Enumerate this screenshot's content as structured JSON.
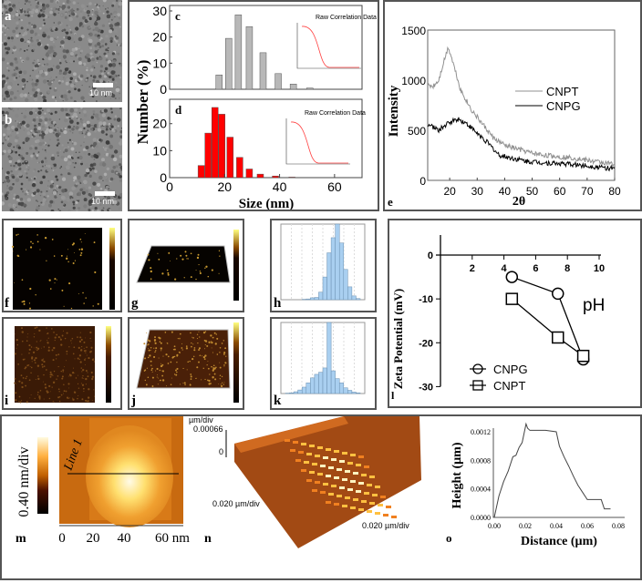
{
  "panels": {
    "a": {
      "label": "a",
      "scale_bar": "10 nm"
    },
    "b": {
      "label": "b",
      "scale_bar": "10 nm"
    },
    "f": {
      "label": "f"
    },
    "g": {
      "label": "g"
    },
    "h": {
      "label": "h"
    },
    "i": {
      "label": "i"
    },
    "j": {
      "label": "j"
    },
    "k": {
      "label": "k"
    },
    "m": {
      "label": "m",
      "colorbar_label": "0.40 nm/div",
      "line_label": "Line 1",
      "x_ticks": [
        "0",
        "20",
        "40",
        "60 nm"
      ]
    },
    "n": {
      "label": "n",
      "z_unit": "µm/div",
      "z_max": "0.00066",
      "z_zero": "0",
      "x_axis": "0.020 µm/div",
      "y_axis": "0.020 µm/div"
    }
  },
  "colors": {
    "gray_bar": "#b8b8b8",
    "red_bar": "#ff0000",
    "cnpt": "#909090",
    "cnpg": "#000000",
    "afm_blue": "#a9cff0"
  },
  "chart_data": [
    {
      "id": "c",
      "type": "bar",
      "label": "c",
      "ylabel": "Number (%)",
      "xlabel": "Size (nm)",
      "xlim": [
        0,
        70
      ],
      "ylim": [
        0,
        30
      ],
      "yticks": [
        "0",
        "10",
        "20",
        "30"
      ],
      "x": [
        18,
        21.5,
        25,
        29,
        34,
        39.5,
        45,
        51
      ],
      "values": [
        5.5,
        19.5,
        28.5,
        24,
        14,
        6,
        2,
        0.5
      ],
      "inset_title": "Raw Correlation Data"
    },
    {
      "id": "d",
      "type": "bar",
      "label": "d",
      "xlabel": "Size (nm)",
      "xlim": [
        0,
        70
      ],
      "ylim": [
        0,
        27
      ],
      "xticks": [
        "0",
        "20",
        "40",
        "60"
      ],
      "yticks": [
        "0",
        "10",
        "20"
      ],
      "x": [
        11.5,
        14,
        16.5,
        19,
        22,
        25.5,
        29,
        33,
        38.5,
        44.5
      ],
      "values": [
        4.5,
        16.5,
        26,
        23.5,
        15,
        7.5,
        3.2,
        1.3,
        0.6,
        0.2
      ],
      "inset_title": "Raw Correlation Data"
    },
    {
      "id": "e",
      "type": "line",
      "label": "e",
      "xlabel": "2θ",
      "ylabel": "Intensity",
      "xlim": [
        12,
        80
      ],
      "ylim": [
        0,
        1500
      ],
      "xticks": [
        "20",
        "30",
        "40",
        "50",
        "60",
        "70",
        "80"
      ],
      "yticks": [
        "0",
        "500",
        "1000",
        "1500"
      ],
      "legend": "center-right",
      "series": [
        {
          "name": "CNPT",
          "x": [
            12,
            14,
            16,
            18,
            19.5,
            21,
            24,
            28,
            32,
            36,
            40,
            45,
            50,
            55,
            60,
            65,
            70,
            75,
            80
          ],
          "y": [
            950,
            940,
            1000,
            1200,
            1330,
            1200,
            900,
            700,
            560,
            420,
            350,
            310,
            270,
            250,
            235,
            225,
            200,
            180,
            160
          ]
        },
        {
          "name": "CNPG",
          "x": [
            12,
            14,
            16,
            18,
            20,
            23,
            26,
            30,
            34,
            38,
            42,
            48,
            55,
            62,
            70,
            75,
            80
          ],
          "y": [
            560,
            530,
            500,
            540,
            580,
            615,
            570,
            470,
            370,
            250,
            225,
            190,
            175,
            165,
            145,
            130,
            115
          ]
        }
      ]
    },
    {
      "id": "l",
      "type": "line",
      "label": "l",
      "xlabel": "pH",
      "ylabel": "Zeta Potential (mV)",
      "xlim": [
        0,
        10
      ],
      "ylim": [
        -30,
        5
      ],
      "xticks": [
        "2",
        "4",
        "6",
        "8",
        "10"
      ],
      "yticks": [
        "0",
        "-10",
        "-20",
        "-30"
      ],
      "legend": "bottom-left",
      "series": [
        {
          "name": "CNPG",
          "marker": "circle",
          "x": [
            4.5,
            7.4,
            9.0
          ],
          "y": [
            -5,
            -8.8,
            -23.8
          ]
        },
        {
          "name": "CNPT",
          "marker": "square",
          "x": [
            4.5,
            7.4,
            9.0
          ],
          "y": [
            -10,
            -18.8,
            -23
          ]
        }
      ]
    },
    {
      "id": "o",
      "type": "line",
      "label": "o",
      "xlabel": "Distance (µm)",
      "ylabel": "Height (µm)",
      "xlim": [
        0,
        0.085
      ],
      "ylim": [
        0,
        0.0014
      ],
      "xticks": [
        "0.00",
        "0.02",
        "0.04",
        "0.06",
        "0.08"
      ],
      "yticks": [
        "0.0000",
        "0.0004",
        "0.0008",
        "0.0012"
      ],
      "series": [
        {
          "name": "profile",
          "x": [
            0,
            0.003,
            0.006,
            0.009,
            0.012,
            0.014,
            0.016,
            0.018,
            0.0205,
            0.0215,
            0.023,
            0.033,
            0.04,
            0.042,
            0.045,
            0.048,
            0.051,
            0.054,
            0.057,
            0.06,
            0.069,
            0.071,
            0.075
          ],
          "y": [
            0,
            0.0003,
            0.0005,
            0.00065,
            0.00085,
            0.00087,
            0.00098,
            0.00105,
            0.00131,
            0.00125,
            0.00122,
            0.00122,
            0.0012,
            0.001,
            0.00085,
            0.00072,
            0.00058,
            0.00045,
            0.00035,
            0.00025,
            0.00025,
            0.00012,
            0.00012
          ]
        }
      ]
    },
    {
      "id": "h",
      "type": "bar",
      "label": "h",
      "values": [
        0,
        0,
        0,
        0,
        0.5,
        1,
        2.5,
        3,
        10,
        30,
        62,
        82,
        100,
        75,
        40,
        17,
        5,
        1.5
      ]
    },
    {
      "id": "k",
      "type": "bar",
      "label": "k",
      "values": [
        0.5,
        1,
        2.5,
        5,
        9,
        15,
        22,
        27,
        30,
        36,
        100,
        32,
        21,
        15,
        8,
        4.5,
        2,
        1
      ]
    }
  ]
}
